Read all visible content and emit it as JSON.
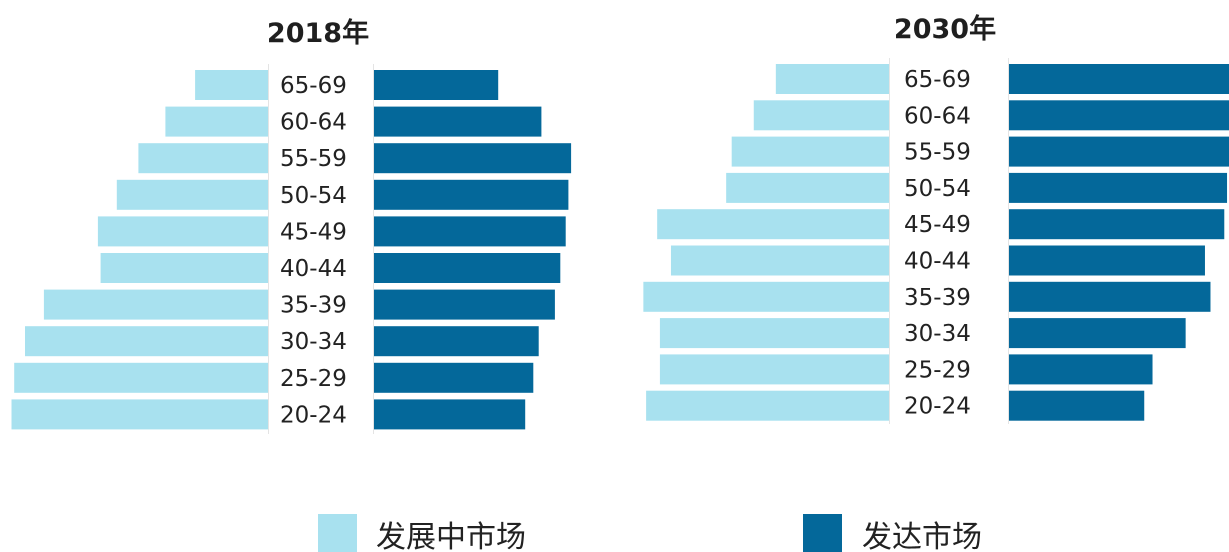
{
  "colors": {
    "developing": "#a8e1ef",
    "developed": "#04689a"
  },
  "legend": [
    {
      "label": "发展中市场",
      "color": "#a8e1ef"
    },
    {
      "label": "发达市场",
      "color": "#04689a"
    }
  ],
  "chart_data": [
    {
      "type": "bar",
      "orientation": "horizontal",
      "layout": "population-pyramid",
      "title": "2018年",
      "categories": [
        "65-69",
        "60-64",
        "55-59",
        "50-54",
        "45-49",
        "40-44",
        "35-39",
        "30-34",
        "25-29",
        "20-24"
      ],
      "series": [
        {
          "name": "发展中市场",
          "values": [
            27,
            38,
            48,
            56,
            63,
            62,
            83,
            90,
            94,
            95
          ]
        },
        {
          "name": "发达市场",
          "values": [
            46,
            62,
            73,
            72,
            71,
            69,
            67,
            61,
            59,
            56
          ]
        }
      ],
      "xlim": [
        0,
        100
      ],
      "grid": false
    },
    {
      "type": "bar",
      "orientation": "horizontal",
      "layout": "population-pyramid",
      "title": "2030年",
      "categories": [
        "65-69",
        "60-64",
        "55-59",
        "50-54",
        "45-49",
        "40-44",
        "35-39",
        "30-34",
        "25-29",
        "20-24"
      ],
      "series": [
        {
          "name": "发展中市场",
          "values": [
            41,
            49,
            57,
            59,
            84,
            79,
            89,
            83,
            83,
            88
          ]
        },
        {
          "name": "发达市场",
          "values": [
            81,
            81,
            81,
            79,
            78,
            71,
            73,
            64,
            52,
            49
          ]
        }
      ],
      "xlim": [
        0,
        100
      ],
      "grid": false
    }
  ]
}
